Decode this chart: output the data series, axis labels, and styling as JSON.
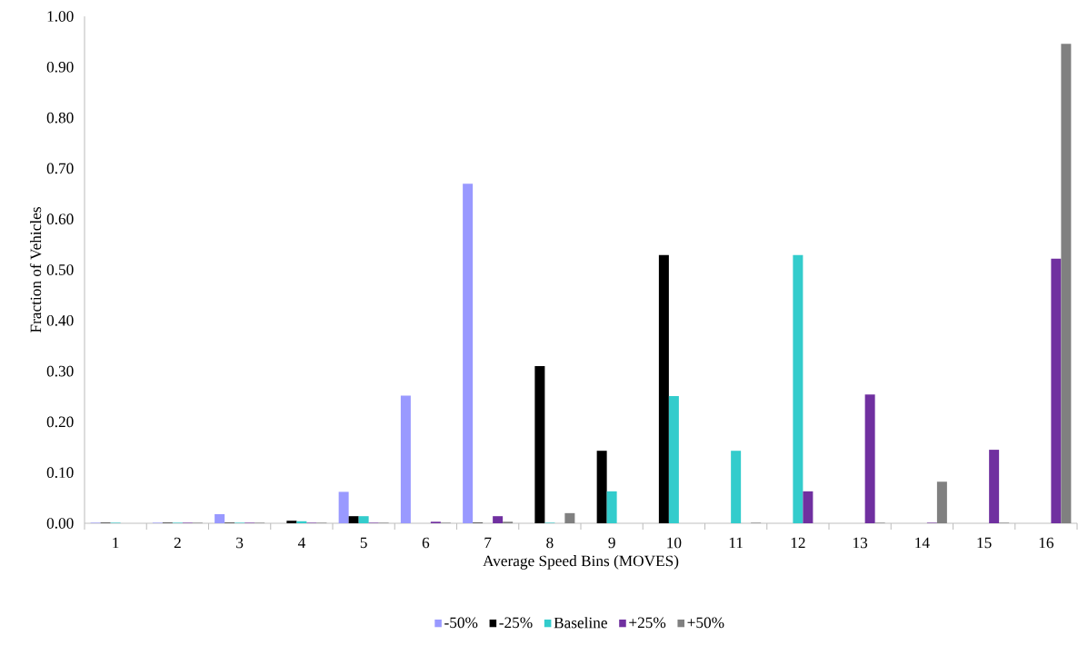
{
  "chart_data": {
    "type": "bar",
    "xlabel": "Average Speed Bins (MOVES)",
    "ylabel": "Fraction of Vehicles",
    "categories": [
      "1",
      "2",
      "3",
      "4",
      "5",
      "6",
      "7",
      "8",
      "9",
      "10",
      "11",
      "12",
      "13",
      "14",
      "15",
      "16"
    ],
    "series": [
      {
        "name": "-50%",
        "color": "#9999ff",
        "values": [
          0.001,
          0.001,
          0.018,
          0,
          0.062,
          0.252,
          0.67,
          0,
          0,
          0,
          0,
          0,
          0,
          0,
          0,
          0
        ]
      },
      {
        "name": "-25%",
        "color": "#000000",
        "values": [
          0.001,
          0.001,
          0.001,
          0.005,
          0.014,
          0,
          0.001,
          0.31,
          0.143,
          0.529,
          0,
          0,
          0,
          0,
          0,
          0
        ]
      },
      {
        "name": "Baseline",
        "color": "#33cccc",
        "values": [
          0.001,
          0.001,
          0.001,
          0.004,
          0.014,
          0,
          0,
          0.001,
          0.063,
          0.251,
          0.143,
          0.529,
          0,
          0,
          0,
          0
        ]
      },
      {
        "name": "+25%",
        "color": "#7030a0",
        "values": [
          0,
          0.001,
          0.001,
          0.001,
          0.001,
          0.003,
          0.014,
          0,
          0,
          0,
          0,
          0.063,
          0.254,
          0.001,
          0.145,
          0.522
        ]
      },
      {
        "name": "+50%",
        "color": "#808080",
        "values": [
          0,
          0.001,
          0.001,
          0.001,
          0.001,
          0.001,
          0.003,
          0.02,
          0,
          0,
          0.001,
          0,
          0.001,
          0.082,
          0.001,
          0.946
        ]
      }
    ],
    "ylim": [
      0,
      1
    ],
    "yticks": [
      {
        "value": 0,
        "label": "0.00"
      },
      {
        "value": 0.1,
        "label": "0.10"
      },
      {
        "value": 0.2,
        "label": "0.20"
      },
      {
        "value": 0.3,
        "label": "0.30"
      },
      {
        "value": 0.4,
        "label": "0.40"
      },
      {
        "value": 0.5,
        "label": "0.50"
      },
      {
        "value": 0.6,
        "label": "0.60"
      },
      {
        "value": 0.7,
        "label": "0.70"
      },
      {
        "value": 0.8,
        "label": "0.80"
      },
      {
        "value": 0.9,
        "label": "0.90"
      },
      {
        "value": 1,
        "label": "1.00"
      }
    ],
    "grid": false,
    "legend": "bottom"
  }
}
